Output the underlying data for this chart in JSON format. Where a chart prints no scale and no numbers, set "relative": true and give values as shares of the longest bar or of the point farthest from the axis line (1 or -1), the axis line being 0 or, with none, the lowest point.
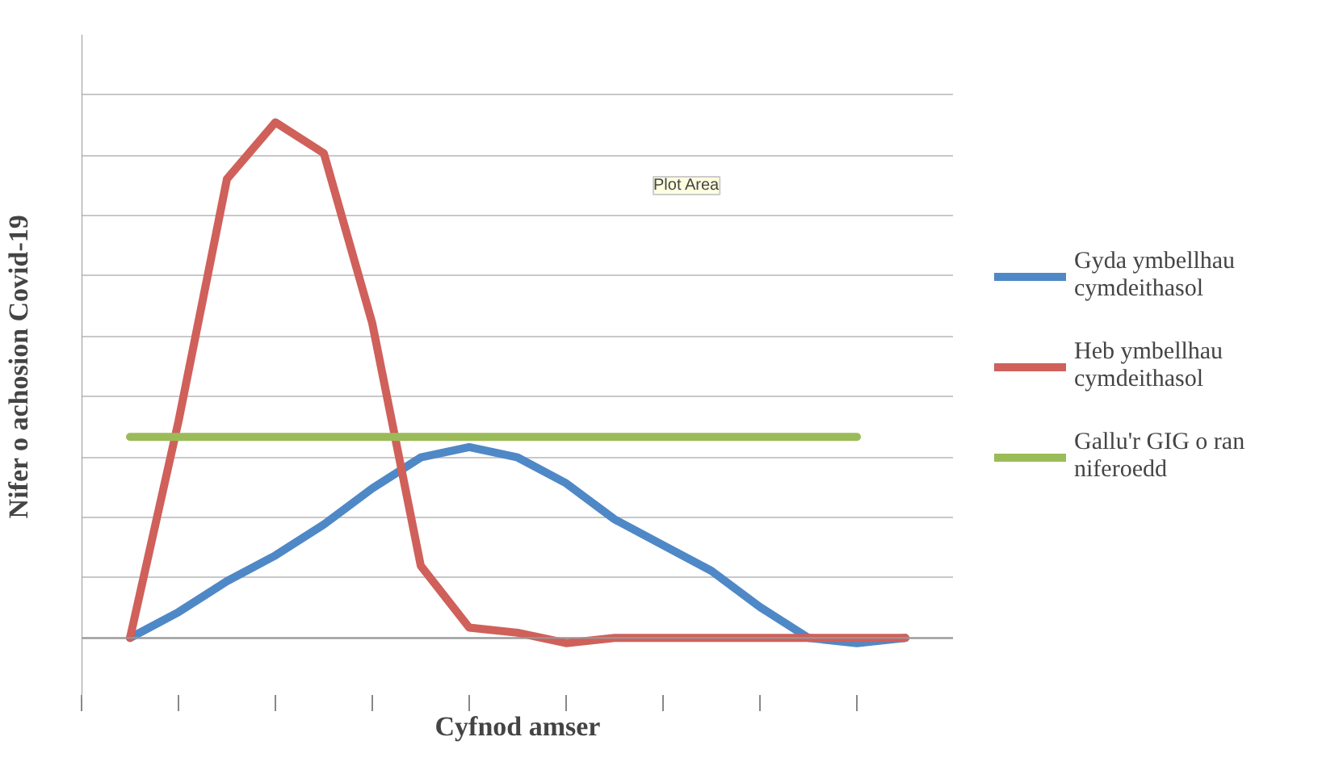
{
  "chart_data": {
    "type": "line",
    "relative": true,
    "xlabel": "Cyfnod amser",
    "ylabel": "Nifer o achosion Covid-19",
    "categories": [
      null,
      null,
      null,
      null,
      null,
      null,
      null,
      null,
      null,
      null,
      null,
      null,
      null,
      null,
      null,
      null,
      null
    ],
    "series": [
      {
        "name": "Gyda ymbellhau cymdeithasol",
        "color": "#4f88c6",
        "values": [
          0,
          0.05,
          0.11,
          0.16,
          0.22,
          0.29,
          0.35,
          0.37,
          0.35,
          0.3,
          0.23,
          0.18,
          0.13,
          0.06,
          0,
          -0.01,
          0
        ]
      },
      {
        "name": "Heb ymbellhau cymdeithasol",
        "color": "#d0605a",
        "values": [
          0,
          0.42,
          0.89,
          1,
          0.94,
          0.61,
          0.14,
          0.02,
          0.01,
          -0.01,
          0,
          0,
          0,
          0,
          0,
          0,
          0
        ]
      },
      {
        "name": "Gallu'r GIG o ran niferoedd",
        "color": "#9bbb59",
        "values": [
          0.39,
          0.39,
          0.39,
          0.39,
          0.39,
          0.39,
          0.39,
          0.39,
          0.39,
          0.39,
          0.39,
          0.39,
          0.39,
          0.39,
          0.39,
          0.39,
          null
        ]
      }
    ],
    "annotations": [
      "Plot Area"
    ],
    "grid": "y",
    "legend": "right",
    "line_style": "solid",
    "marker": "none"
  }
}
